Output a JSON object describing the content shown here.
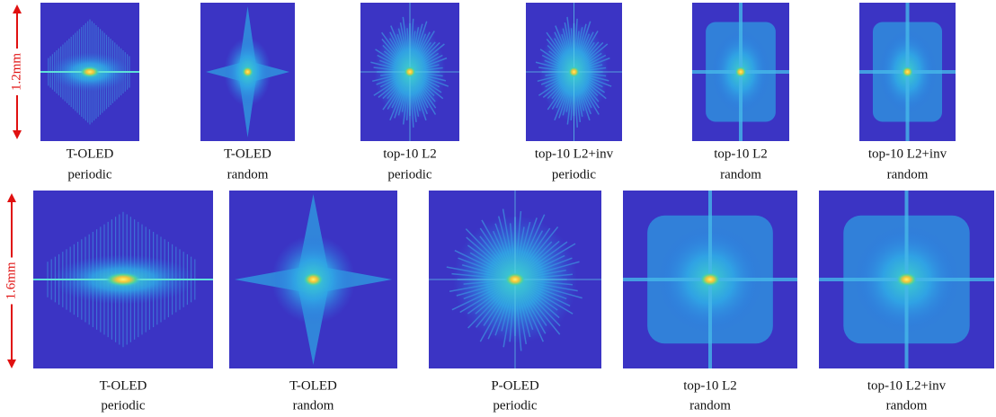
{
  "rows": [
    {
      "scale": "1.2mm",
      "panels": [
        {
          "caption": [
            "T-OLED",
            "periodic"
          ]
        },
        {
          "caption": [
            "T-OLED",
            "random"
          ]
        },
        {
          "caption": [
            "top-10 L2",
            "periodic"
          ]
        },
        {
          "caption": [
            "top-10 L2+inv",
            "periodic"
          ]
        },
        {
          "caption": [
            "top-10 L2",
            "random"
          ]
        },
        {
          "caption": [
            "top-10 L2+inv",
            "random"
          ]
        }
      ]
    },
    {
      "scale": "1.6mm",
      "panels": [
        {
          "caption": [
            "T-OLED",
            "periodic"
          ]
        },
        {
          "caption": [
            "T-OLED",
            "random"
          ]
        },
        {
          "caption": [
            "P-OLED",
            "periodic"
          ]
        },
        {
          "caption": [
            "top-10 L2",
            "random"
          ]
        },
        {
          "caption": [
            "top-10 L2+inv",
            "random"
          ]
        }
      ]
    }
  ]
}
